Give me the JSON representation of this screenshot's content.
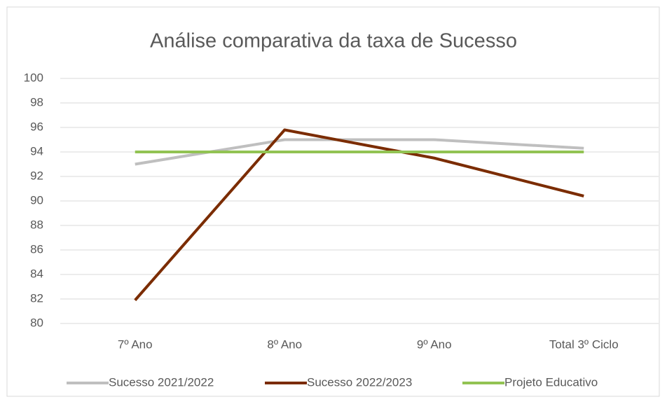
{
  "chart_data": {
    "type": "line",
    "title": "Análise comparativa da taxa de Sucesso",
    "categories": [
      "7º Ano",
      "8º Ano",
      "9º Ano",
      "Total 3º Ciclo"
    ],
    "series": [
      {
        "name": "Sucesso 2021/2022",
        "color": "#bfbfbf",
        "values": [
          93,
          95,
          95,
          94.3
        ]
      },
      {
        "name": "Sucesso 2022/2023",
        "color": "#7b2c00",
        "values": [
          81.9,
          95.8,
          93.5,
          90.4
        ]
      },
      {
        "name": "Projeto Educativo",
        "color": "#92c353",
        "values": [
          94,
          94,
          94,
          94
        ]
      }
    ],
    "ylim": [
      80,
      100
    ],
    "yticks": [
      80,
      82,
      84,
      86,
      88,
      90,
      92,
      94,
      96,
      98,
      100
    ],
    "grid": true,
    "legend": "bottom"
  }
}
